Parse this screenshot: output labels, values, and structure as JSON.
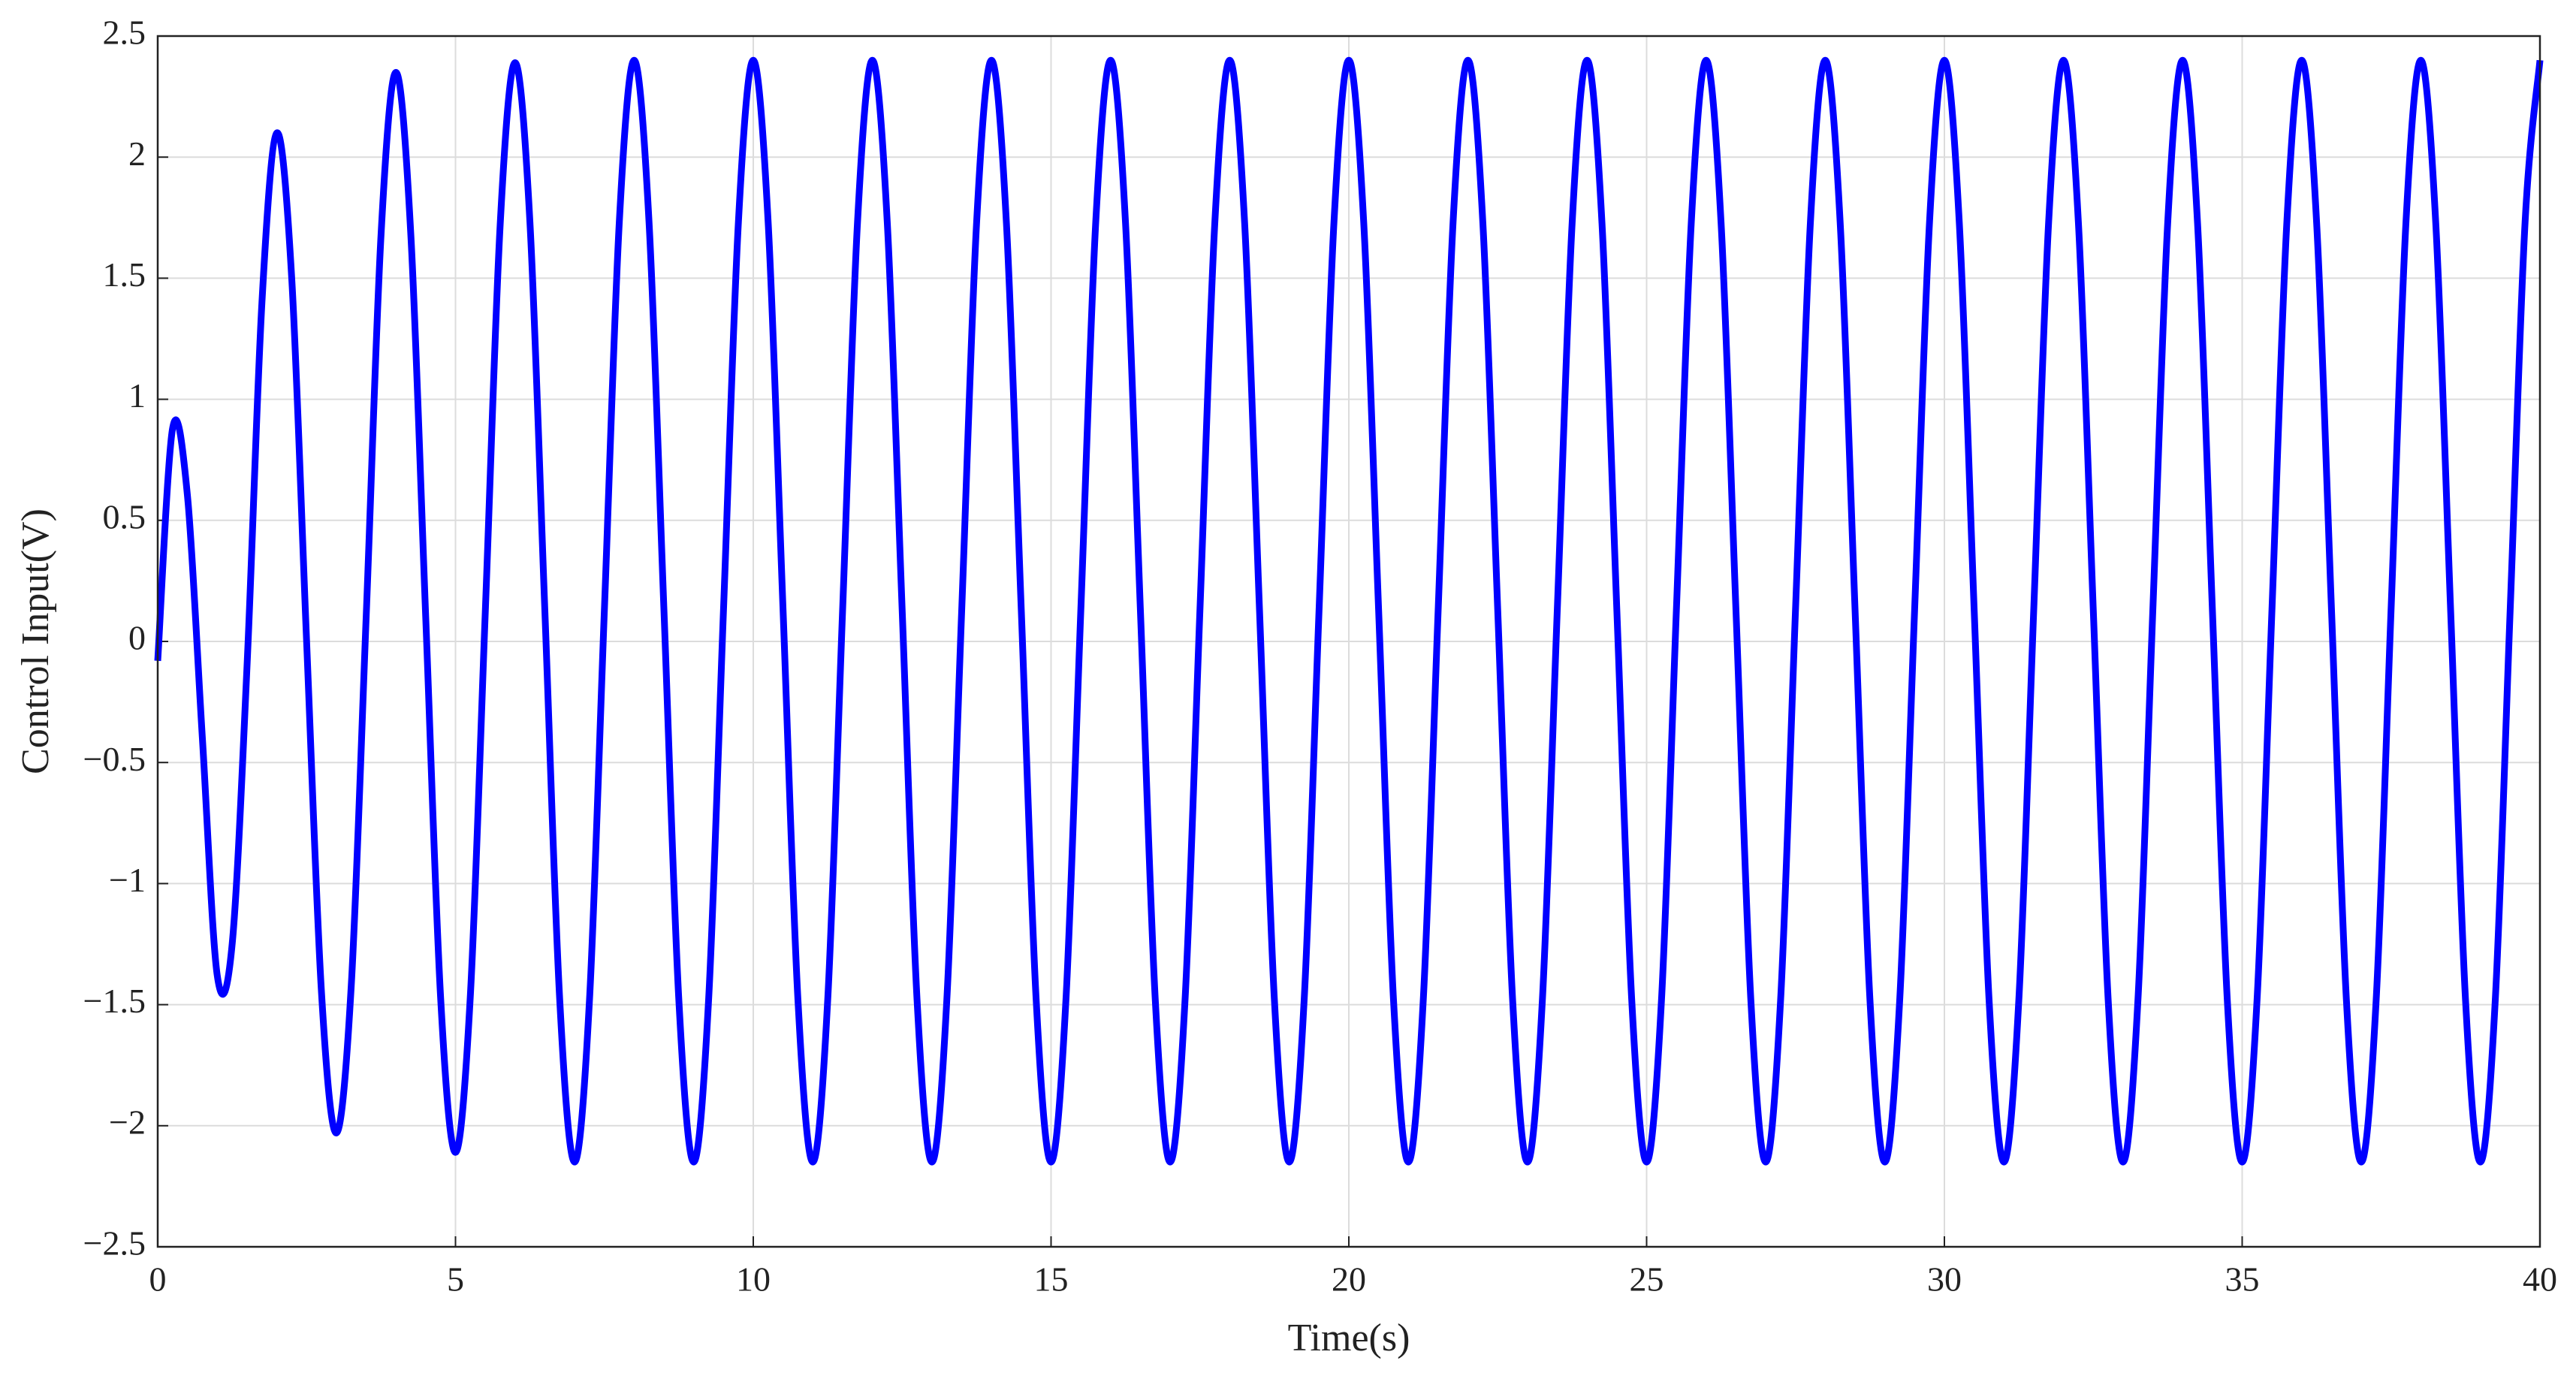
{
  "chart_data": {
    "type": "line",
    "xlabel": "Time(s)",
    "ylabel": "Control Input(V)",
    "xlim": [
      0,
      40
    ],
    "ylim": [
      -2.5,
      2.5
    ],
    "xticks": [
      0,
      5,
      10,
      15,
      20,
      25,
      30,
      35,
      40
    ],
    "yticks": [
      {
        "value": -2.5,
        "label": "−2.5"
      },
      {
        "value": -2,
        "label": "−2"
      },
      {
        "value": -1.5,
        "label": "−1.5"
      },
      {
        "value": -1,
        "label": "−1"
      },
      {
        "value": -0.5,
        "label": "−0.5"
      },
      0,
      0.5,
      1,
      1.5,
      2,
      2.5
    ],
    "grid": true,
    "x": [
      0,
      0.25,
      0.5,
      0.75,
      1,
      1.25,
      1.5,
      1.75,
      2,
      2.25,
      2.5,
      2.75,
      3,
      3.25,
      3.5,
      3.75,
      4,
      4.25,
      4.5,
      4.75,
      5,
      5.25,
      5.5,
      5.75,
      6,
      6.25,
      6.5,
      6.75,
      7,
      7.25,
      7.5,
      7.75,
      8,
      8.25,
      8.5,
      8.75,
      9,
      9.25,
      9.5,
      9.75,
      10,
      10.25,
      10.5,
      10.75,
      11,
      11.25,
      11.5,
      11.75,
      12,
      12.25,
      12.5,
      12.75,
      13,
      13.25,
      13.5,
      13.75,
      14,
      14.25,
      14.5,
      14.75,
      15,
      15.25,
      15.5,
      15.75,
      16,
      16.25,
      16.5,
      16.75,
      17,
      17.25,
      17.5,
      17.75,
      18,
      18.25,
      18.5,
      18.75,
      19,
      19.25,
      19.5,
      19.75,
      20,
      20.25,
      20.5,
      20.75,
      21,
      21.25,
      21.5,
      21.75,
      22,
      22.25,
      22.5,
      22.75,
      23,
      23.25,
      23.5,
      23.75,
      24,
      24.25,
      24.5,
      24.75,
      25,
      25.25,
      25.5,
      25.75,
      26,
      26.25,
      26.5,
      26.75,
      27,
      27.25,
      27.5,
      27.75,
      28,
      28.25,
      28.5,
      28.75,
      29,
      29.25,
      29.5,
      29.75,
      30,
      30.25,
      30.5,
      30.75,
      31,
      31.25,
      31.5,
      31.75,
      32,
      32.25,
      32.5,
      32.75,
      33,
      33.25,
      33.5,
      33.75,
      34,
      34.25,
      34.5,
      34.75,
      35,
      35.25,
      35.5,
      35.75,
      36,
      36.25,
      36.5,
      36.75,
      37,
      37.25,
      37.5,
      37.75,
      38,
      38.25,
      38.5,
      38.75,
      39,
      39.25,
      39.5,
      39.75,
      40
    ],
    "series": [
      {
        "color": "#0000ff",
        "values": [
          -0.08,
          0.88,
          0.6,
          -0.4,
          -1.38,
          -1.25,
          -0.1,
          1.4,
          2.1,
          1.5,
          0.0,
          -1.45,
          -2.03,
          -1.42,
          0.1,
          1.68,
          2.35,
          1.68,
          0.1,
          -1.47,
          -2.11,
          -1.46,
          0.12,
          1.72,
          2.39,
          1.73,
          0.13,
          -1.48,
          -2.15,
          -1.48,
          0.13,
          1.73,
          2.4,
          1.73,
          0.13,
          -1.48,
          -2.15,
          -1.48,
          0.13,
          1.73,
          2.4,
          1.73,
          0.13,
          -1.48,
          -2.15,
          -1.48,
          0.13,
          1.73,
          2.4,
          1.73,
          0.13,
          -1.48,
          -2.15,
          -1.48,
          0.13,
          1.73,
          2.4,
          1.73,
          0.13,
          -1.48,
          -2.15,
          -1.48,
          0.13,
          1.73,
          2.4,
          1.73,
          0.13,
          -1.48,
          -2.15,
          -1.48,
          0.13,
          1.73,
          2.4,
          1.73,
          0.13,
          -1.48,
          -2.15,
          -1.48,
          0.13,
          1.73,
          2.4,
          1.73,
          0.13,
          -1.48,
          -2.15,
          -1.48,
          0.13,
          1.73,
          2.4,
          1.73,
          0.13,
          -1.48,
          -2.15,
          -1.48,
          0.13,
          1.73,
          2.4,
          1.73,
          0.13,
          -1.48,
          -2.15,
          -1.48,
          0.13,
          1.73,
          2.4,
          1.73,
          0.13,
          -1.48,
          -2.15,
          -1.48,
          0.13,
          1.73,
          2.4,
          1.73,
          0.13,
          -1.48,
          -2.15,
          -1.48,
          0.13,
          1.73,
          2.4,
          1.73,
          0.13,
          -1.48,
          -2.15,
          -1.48,
          0.13,
          1.73,
          2.4,
          1.73,
          0.13,
          -1.48,
          -2.15,
          -1.48,
          0.13,
          1.73,
          2.4,
          1.73,
          0.13,
          -1.48,
          -2.15,
          -1.48,
          0.13,
          1.73,
          2.4,
          1.73,
          0.13,
          -1.48,
          -2.15,
          -1.48,
          0.13,
          1.73,
          2.4,
          1.73,
          0.13,
          -1.48,
          -2.15,
          -1.48,
          0.13,
          1.73,
          2.4
        ]
      }
    ]
  }
}
